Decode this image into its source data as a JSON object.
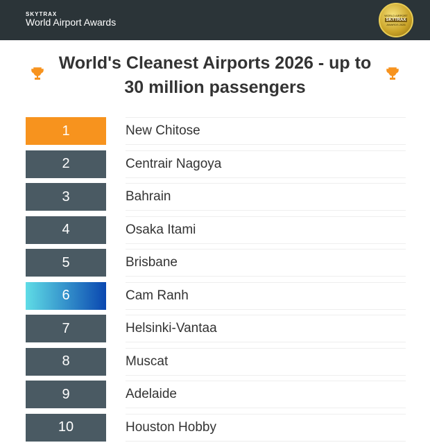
{
  "header": {
    "brand": "SKYTRAX",
    "subtitle": "World Airport Awards",
    "badge": {
      "top": "WORLD AIRPORT",
      "middle": "SKYTRAX",
      "bottom": "AWARDS 2026"
    }
  },
  "title": "World's Cleanest Airports 2026 - up to 30 million passengers",
  "colors": {
    "gold": "#f7931e",
    "default": "#4a5a63",
    "highlight_from": "#5fdce6",
    "highlight_to": "#0a47b0"
  },
  "rankings": [
    {
      "rank": "1",
      "name": "New Chitose"
    },
    {
      "rank": "2",
      "name": "Centrair Nagoya"
    },
    {
      "rank": "3",
      "name": "Bahrain"
    },
    {
      "rank": "4",
      "name": "Osaka Itami"
    },
    {
      "rank": "5",
      "name": "Brisbane"
    },
    {
      "rank": "6",
      "name": "Cam Ranh"
    },
    {
      "rank": "7",
      "name": "Helsinki-Vantaa"
    },
    {
      "rank": "8",
      "name": "Muscat"
    },
    {
      "rank": "9",
      "name": "Adelaide"
    },
    {
      "rank": "10",
      "name": "Houston Hobby"
    }
  ]
}
